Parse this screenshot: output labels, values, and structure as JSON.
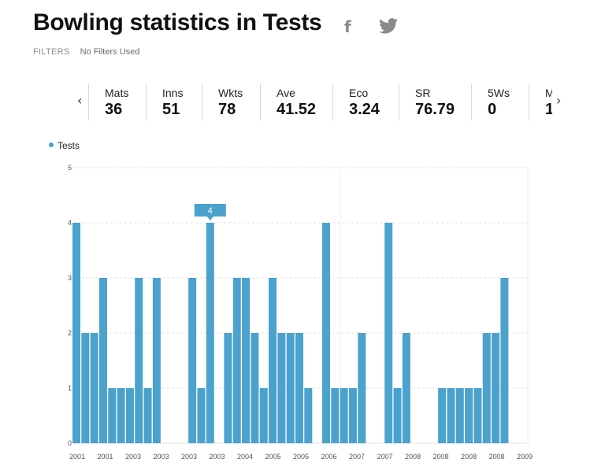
{
  "header": {
    "title": "Bowling statistics in Tests",
    "share_facebook_icon": "facebook-icon",
    "share_twitter_icon": "twitter-icon"
  },
  "filters": {
    "label": "FILTERS",
    "value": "No Filters Used"
  },
  "stats": [
    {
      "key": "Mats",
      "value": "36"
    },
    {
      "key": "Inns",
      "value": "51"
    },
    {
      "key": "Wkts",
      "value": "78"
    },
    {
      "key": "Ave",
      "value": "41.52"
    },
    {
      "key": "Eco",
      "value": "3.24"
    },
    {
      "key": "SR",
      "value": "76.79"
    },
    {
      "key": "5Ws",
      "value": "0"
    },
    {
      "key": "M",
      "value": "1"
    }
  ],
  "colors": {
    "bar": "#4aa2cd",
    "tooltip": "#4aa2cd",
    "grid": "#e2e2e2"
  },
  "chart_data": {
    "type": "bar",
    "legend": [
      "Tests"
    ],
    "legend_position": "top-left",
    "ylim": [
      0,
      5
    ],
    "yticks": [
      0,
      1,
      2,
      3,
      4,
      5
    ],
    "xticks": [
      "2001",
      "2001",
      "2003",
      "2003",
      "2003",
      "2003",
      "2004",
      "2005",
      "2005",
      "2006",
      "2007",
      "2007",
      "2008",
      "2008",
      "2008",
      "2008",
      "2009"
    ],
    "grid": true,
    "tooltip": {
      "bar_index": 15,
      "label": "4"
    },
    "series": [
      {
        "name": "Tests",
        "values": [
          4,
          2,
          2,
          3,
          1,
          1,
          1,
          3,
          1,
          3,
          null,
          null,
          null,
          3,
          1,
          4,
          null,
          2,
          3,
          3,
          2,
          1,
          3,
          2,
          2,
          2,
          1,
          null,
          4,
          1,
          1,
          1,
          2,
          null,
          null,
          4,
          1,
          2,
          null,
          null,
          null,
          1,
          1,
          1,
          1,
          1,
          2,
          2,
          3
        ]
      }
    ]
  }
}
